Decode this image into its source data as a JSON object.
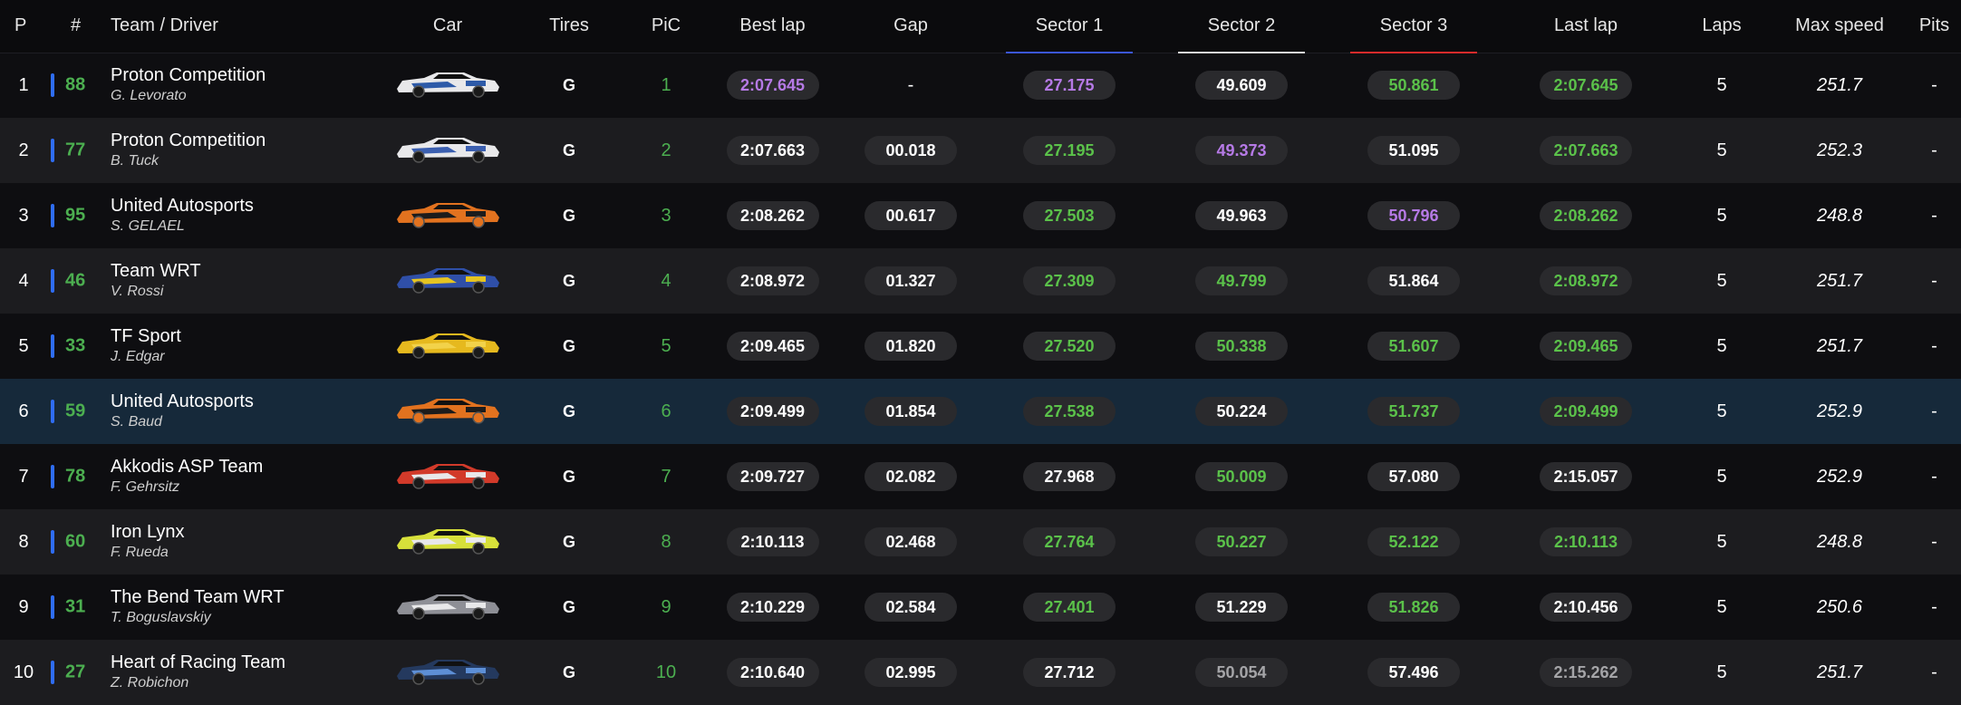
{
  "headers": {
    "p": "P",
    "num": "#",
    "team_driver": "Team / Driver",
    "car": "Car",
    "tires": "Tires",
    "pic": "PiC",
    "best_lap": "Best lap",
    "gap": "Gap",
    "sector1": "Sector 1",
    "sector2": "Sector 2",
    "sector3": "Sector 3",
    "last_lap": "Last lap",
    "laps": "Laps",
    "max_speed": "Max speed",
    "pits": "Pits"
  },
  "colors": {
    "sector1_line": "#3b57d9",
    "sector2_line": "#d9d9d9",
    "sector3_line": "#d92b2b",
    "green": "#5bc24a",
    "purple": "#b67ae6",
    "grey": "#a5a5a8",
    "class_bar": "#2f6df6",
    "highlight_row": "#16293a"
  },
  "rows": [
    {
      "pos": "1",
      "num": "88",
      "team": "Proton Competition",
      "driver": "G. Levorato",
      "car_colors": [
        "#e8e8ea",
        "#2d5aa8",
        "#1a1a1a"
      ],
      "tires": "G",
      "pic": "1",
      "best": {
        "v": "2:07.645",
        "c": "purple"
      },
      "gap": {
        "v": "-",
        "c": "plain"
      },
      "s1": {
        "v": "27.175",
        "c": "purple"
      },
      "s2": {
        "v": "49.609",
        "c": "white"
      },
      "s3": {
        "v": "50.861",
        "c": "green"
      },
      "last": {
        "v": "2:07.645",
        "c": "green"
      },
      "laps": "5",
      "speed": "251.7",
      "pits": "-",
      "highlight": false
    },
    {
      "pos": "2",
      "num": "77",
      "team": "Proton Competition",
      "driver": "B. Tuck",
      "car_colors": [
        "#e8e8ea",
        "#3b5fb0",
        "#1a1a1a"
      ],
      "tires": "G",
      "pic": "2",
      "best": {
        "v": "2:07.663",
        "c": "white"
      },
      "gap": {
        "v": "00.018",
        "c": "white"
      },
      "s1": {
        "v": "27.195",
        "c": "green"
      },
      "s2": {
        "v": "49.373",
        "c": "purple"
      },
      "s3": {
        "v": "51.095",
        "c": "white"
      },
      "last": {
        "v": "2:07.663",
        "c": "green"
      },
      "laps": "5",
      "speed": "252.3",
      "pits": "-",
      "highlight": false
    },
    {
      "pos": "3",
      "num": "95",
      "team": "United Autosports",
      "driver": "S. GELAEL",
      "car_colors": [
        "#e2721f",
        "#1c1c1c",
        "#e2721f"
      ],
      "tires": "G",
      "pic": "3",
      "best": {
        "v": "2:08.262",
        "c": "white"
      },
      "gap": {
        "v": "00.617",
        "c": "white"
      },
      "s1": {
        "v": "27.503",
        "c": "green"
      },
      "s2": {
        "v": "49.963",
        "c": "white"
      },
      "s3": {
        "v": "50.796",
        "c": "purple"
      },
      "last": {
        "v": "2:08.262",
        "c": "green"
      },
      "laps": "5",
      "speed": "248.8",
      "pits": "-",
      "highlight": false
    },
    {
      "pos": "4",
      "num": "46",
      "team": "Team WRT",
      "driver": "V. Rossi",
      "car_colors": [
        "#2f4fa8",
        "#e5c421",
        "#1a1a1a"
      ],
      "tires": "G",
      "pic": "4",
      "best": {
        "v": "2:08.972",
        "c": "white"
      },
      "gap": {
        "v": "01.327",
        "c": "white"
      },
      "s1": {
        "v": "27.309",
        "c": "green"
      },
      "s2": {
        "v": "49.799",
        "c": "green"
      },
      "s3": {
        "v": "51.864",
        "c": "white"
      },
      "last": {
        "v": "2:08.972",
        "c": "green"
      },
      "laps": "5",
      "speed": "251.7",
      "pits": "-",
      "highlight": false
    },
    {
      "pos": "5",
      "num": "33",
      "team": "TF Sport",
      "driver": "J. Edgar",
      "car_colors": [
        "#e6b91e",
        "#f2d24a",
        "#1a1a1a"
      ],
      "tires": "G",
      "pic": "5",
      "best": {
        "v": "2:09.465",
        "c": "white"
      },
      "gap": {
        "v": "01.820",
        "c": "white"
      },
      "s1": {
        "v": "27.520",
        "c": "green"
      },
      "s2": {
        "v": "50.338",
        "c": "green"
      },
      "s3": {
        "v": "51.607",
        "c": "green"
      },
      "last": {
        "v": "2:09.465",
        "c": "green"
      },
      "laps": "5",
      "speed": "251.7",
      "pits": "-",
      "highlight": false
    },
    {
      "pos": "6",
      "num": "59",
      "team": "United Autosports",
      "driver": "S. Baud",
      "car_colors": [
        "#e2721f",
        "#1c1c1c",
        "#e2721f"
      ],
      "tires": "G",
      "pic": "6",
      "best": {
        "v": "2:09.499",
        "c": "white"
      },
      "gap": {
        "v": "01.854",
        "c": "white"
      },
      "s1": {
        "v": "27.538",
        "c": "green"
      },
      "s2": {
        "v": "50.224",
        "c": "white"
      },
      "s3": {
        "v": "51.737",
        "c": "green"
      },
      "last": {
        "v": "2:09.499",
        "c": "green"
      },
      "laps": "5",
      "speed": "252.9",
      "pits": "-",
      "highlight": true
    },
    {
      "pos": "7",
      "num": "78",
      "team": "Akkodis ASP Team",
      "driver": "F. Gehrsitz",
      "car_colors": [
        "#d23a2a",
        "#e8e8ea",
        "#1a1a1a"
      ],
      "tires": "G",
      "pic": "7",
      "best": {
        "v": "2:09.727",
        "c": "white"
      },
      "gap": {
        "v": "02.082",
        "c": "white"
      },
      "s1": {
        "v": "27.968",
        "c": "white"
      },
      "s2": {
        "v": "50.009",
        "c": "green"
      },
      "s3": {
        "v": "57.080",
        "c": "white"
      },
      "last": {
        "v": "2:15.057",
        "c": "white"
      },
      "laps": "5",
      "speed": "252.9",
      "pits": "-",
      "highlight": false
    },
    {
      "pos": "8",
      "num": "60",
      "team": "Iron Lynx",
      "driver": "F. Rueda",
      "car_colors": [
        "#d7e03a",
        "#e8e8ea",
        "#1a1a1a"
      ],
      "tires": "G",
      "pic": "8",
      "best": {
        "v": "2:10.113",
        "c": "white"
      },
      "gap": {
        "v": "02.468",
        "c": "white"
      },
      "s1": {
        "v": "27.764",
        "c": "green"
      },
      "s2": {
        "v": "50.227",
        "c": "green"
      },
      "s3": {
        "v": "52.122",
        "c": "green"
      },
      "last": {
        "v": "2:10.113",
        "c": "green"
      },
      "laps": "5",
      "speed": "248.8",
      "pits": "-",
      "highlight": false
    },
    {
      "pos": "9",
      "num": "31",
      "team": "The Bend Team WRT",
      "driver": "T. Boguslavskiy",
      "car_colors": [
        "#8e8f96",
        "#e8e8ea",
        "#1a1a1a"
      ],
      "tires": "G",
      "pic": "9",
      "best": {
        "v": "2:10.229",
        "c": "white"
      },
      "gap": {
        "v": "02.584",
        "c": "white"
      },
      "s1": {
        "v": "27.401",
        "c": "green"
      },
      "s2": {
        "v": "51.229",
        "c": "white"
      },
      "s3": {
        "v": "51.826",
        "c": "green"
      },
      "last": {
        "v": "2:10.456",
        "c": "white"
      },
      "laps": "5",
      "speed": "250.6",
      "pits": "-",
      "highlight": false
    },
    {
      "pos": "10",
      "num": "27",
      "team": "Heart of Racing Team",
      "driver": "Z. Robichon",
      "car_colors": [
        "#24395e",
        "#5d8fd6",
        "#1a1a1a"
      ],
      "tires": "G",
      "pic": "10",
      "best": {
        "v": "2:10.640",
        "c": "white"
      },
      "gap": {
        "v": "02.995",
        "c": "white"
      },
      "s1": {
        "v": "27.712",
        "c": "white"
      },
      "s2": {
        "v": "50.054",
        "c": "grey"
      },
      "s3": {
        "v": "57.496",
        "c": "white"
      },
      "last": {
        "v": "2:15.262",
        "c": "grey"
      },
      "laps": "5",
      "speed": "251.7",
      "pits": "-",
      "highlight": false
    }
  ]
}
